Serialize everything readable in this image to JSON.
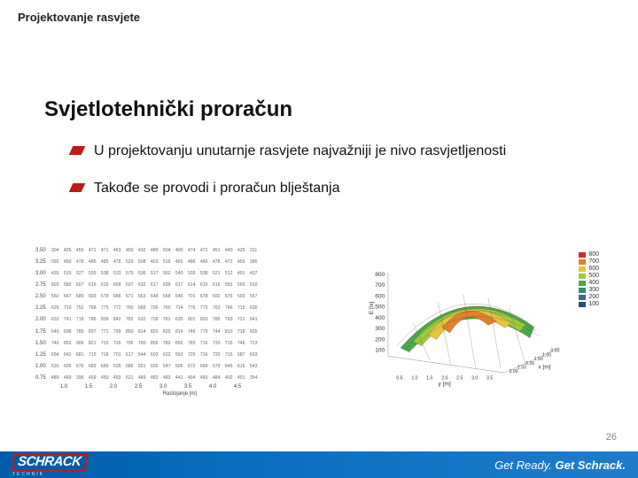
{
  "header": {
    "title": "Projektovanje rasvjete"
  },
  "main": {
    "title": "Svjetlotehnički proračun",
    "bullets": [
      "U projektovanju unutarnje rasvjete najvažniji je nivo rasvjetljenosti",
      "Takođe se provodi i proračun blještanja"
    ]
  },
  "table_figure": {
    "y_ticks": [
      "3.50",
      "3.25",
      "3.00",
      "2.75",
      "2.50",
      "2.25",
      "2.00",
      "1.75",
      "1.50",
      "1.25",
      "1.00",
      "0.75"
    ],
    "x_ticks": [
      "1.0",
      "1.5",
      "2.0",
      "2.5",
      "3.0",
      "3.5",
      "4.0",
      "4.5"
    ],
    "x_label": "Rastojanje [m]",
    "rows": [
      [
        "304",
        "435",
        "455",
        "471",
        "471",
        "463",
        "450",
        "432",
        "489",
        "504",
        "400",
        "474",
        "471",
        "451",
        "440",
        "425",
        "311"
      ],
      [
        "092",
        "450",
        "478",
        "486",
        "485",
        "478",
        "529",
        "508",
        "403",
        "518",
        "465",
        "486",
        "486",
        "478",
        "472",
        "456",
        "386"
      ],
      [
        "435",
        "515",
        "527",
        "535",
        "538",
        "533",
        "575",
        "536",
        "517",
        "562",
        "540",
        "539",
        "538",
        "521",
        "512",
        "491",
        "437"
      ],
      [
        "503",
        "582",
        "607",
        "615",
        "615",
        "609",
        "597",
        "632",
        "617",
        "639",
        "617",
        "614",
        "615",
        "616",
        "591",
        "565",
        "510"
      ],
      [
        "560",
        "647",
        "680",
        "693",
        "678",
        "686",
        "671",
        "663",
        "648",
        "668",
        "645",
        "701",
        "678",
        "692",
        "676",
        "593",
        "557"
      ],
      [
        "626",
        "719",
        "752",
        "768",
        "775",
        "772",
        "760",
        "689",
        "736",
        "760",
        "714",
        "776",
        "775",
        "763",
        "746",
        "715",
        "630"
      ],
      [
        "632",
        "741",
        "718",
        "786",
        "839",
        "842",
        "782",
        "632",
        "728",
        "761",
        "635",
        "801",
        "833",
        "785",
        "783",
        "721",
        "641"
      ],
      [
        "640",
        "698",
        "785",
        "837",
        "771",
        "799",
        "850",
        "814",
        "820",
        "820",
        "814",
        "746",
        "775",
        "744",
        "810",
        "718",
        "655"
      ],
      [
        "740",
        "852",
        "906",
        "821",
        "715",
        "726",
        "795",
        "780",
        "855",
        "782",
        "655",
        "783",
        "716",
        "720",
        "715",
        "746",
        "713"
      ],
      [
        "654",
        "642",
        "681",
        "715",
        "718",
        "701",
        "617",
        "544",
        "603",
        "622",
        "563",
        "725",
        "716",
        "720",
        "715",
        "687",
        "603"
      ],
      [
        "530",
        "605",
        "676",
        "683",
        "689",
        "635",
        "586",
        "551",
        "555",
        "547",
        "505",
        "672",
        "689",
        "679",
        "646",
        "616",
        "543"
      ],
      [
        "489",
        "469",
        "395",
        "459",
        "450",
        "459",
        "521",
        "489",
        "483",
        "483",
        "441",
        "454",
        "450",
        "484",
        "402",
        "401",
        "354"
      ]
    ]
  },
  "surface_figure": {
    "z_legend": [
      {
        "label": "800",
        "color": "#c9302c"
      },
      {
        "label": "700",
        "color": "#e0802a"
      },
      {
        "label": "600",
        "color": "#e6c53a"
      },
      {
        "label": "500",
        "color": "#9ecb3c"
      },
      {
        "label": "400",
        "color": "#4aa84a"
      },
      {
        "label": "300",
        "color": "#3a8a6a"
      },
      {
        "label": "200",
        "color": "#3a6a8a"
      },
      {
        "label": "100",
        "color": "#2c4c7a"
      }
    ],
    "z_label": "E [lx]",
    "x_label": "x [m]",
    "y_label": "y [m]",
    "x_ticks": [
      "3.00",
      "2.50",
      "2.00",
      "1.50",
      "1.00",
      "0.50"
    ],
    "y_ticks": [
      "0.5",
      "1.0",
      "1.5",
      "2.0",
      "2.5",
      "3.0",
      "3.5"
    ]
  },
  "page": {
    "number": "26"
  },
  "footer": {
    "logo_text": "SCHRACK",
    "logo_sub": "TECHNIK",
    "tagline_pre": "Get Ready.",
    "tagline_bold": "Get Schrack."
  }
}
